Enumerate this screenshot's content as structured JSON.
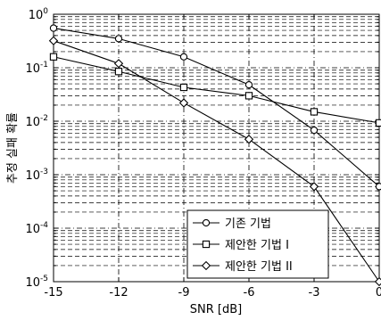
{
  "chart_data": {
    "type": "line",
    "xlabel": "SNR [dB]",
    "ylabel": "추정 실패 확률",
    "x": [
      -15,
      -12,
      -9,
      -6,
      -3,
      0
    ],
    "xlim": [
      -15,
      0
    ],
    "ylim": [
      1e-05,
      1
    ],
    "yscale": "log",
    "x_ticks": [
      "-15",
      "-12",
      "-9",
      "-6",
      "-3",
      "0"
    ],
    "y_ticks": [
      {
        "base": "10",
        "exp": "0"
      },
      {
        "base": "10",
        "exp": "-1"
      },
      {
        "base": "10",
        "exp": "-2"
      },
      {
        "base": "10",
        "exp": "-3"
      },
      {
        "base": "10",
        "exp": "-4"
      },
      {
        "base": "10",
        "exp": "-5"
      }
    ],
    "grid": true,
    "legend_position": "bottom-right",
    "series": [
      {
        "name": "기존 기법",
        "marker": "circle",
        "values": [
          0.55,
          0.35,
          0.16,
          0.048,
          0.0068,
          0.0006
        ]
      },
      {
        "name": "제안한 기법 I",
        "marker": "square",
        "values": [
          0.16,
          0.085,
          0.043,
          0.03,
          0.015,
          0.0093
        ]
      },
      {
        "name": "제안한 기법 II",
        "marker": "diamond",
        "values": [
          0.32,
          0.12,
          0.022,
          0.0046,
          0.0006,
          1e-05
        ]
      }
    ]
  }
}
